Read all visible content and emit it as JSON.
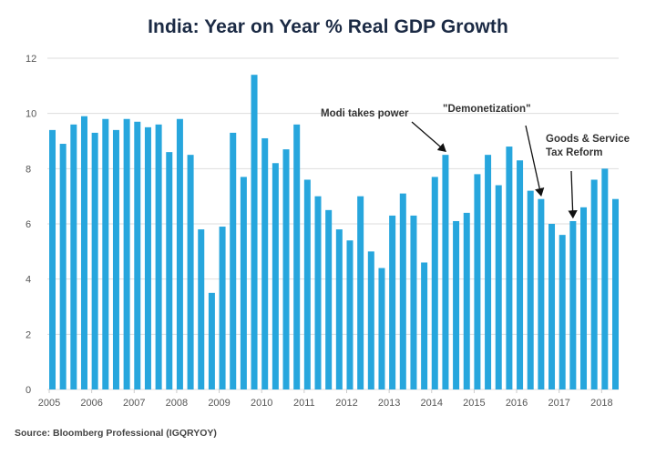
{
  "chart_data": {
    "type": "bar",
    "title": "India: Year on Year % Real GDP Growth",
    "xlabel": "",
    "ylabel": "",
    "ylim": [
      0,
      12
    ],
    "yticks": [
      0,
      2,
      4,
      6,
      8,
      10,
      12
    ],
    "grid": true,
    "legend": "none",
    "bar_color": "#27a6dd",
    "frequency": "quarterly",
    "x_tick_labels": [
      "2005",
      "2006",
      "2007",
      "2008",
      "2009",
      "2010",
      "2011",
      "2012",
      "2013",
      "2014",
      "2015",
      "2016",
      "2017",
      "2018"
    ],
    "categories": [
      "2005 Q1",
      "2005 Q2",
      "2005 Q3",
      "2005 Q4",
      "2006 Q1",
      "2006 Q2",
      "2006 Q3",
      "2006 Q4",
      "2007 Q1",
      "2007 Q2",
      "2007 Q3",
      "2007 Q4",
      "2008 Q1",
      "2008 Q2",
      "2008 Q3",
      "2008 Q4",
      "2009 Q1",
      "2009 Q2",
      "2009 Q3",
      "2009 Q4",
      "2010 Q1",
      "2010 Q2",
      "2010 Q3",
      "2010 Q4",
      "2011 Q1",
      "2011 Q2",
      "2011 Q3",
      "2011 Q4",
      "2012 Q1",
      "2012 Q2",
      "2012 Q3",
      "2012 Q4",
      "2013 Q1",
      "2013 Q2",
      "2013 Q3",
      "2013 Q4",
      "2014 Q1",
      "2014 Q2",
      "2014 Q3",
      "2014 Q4",
      "2015 Q1",
      "2015 Q2",
      "2015 Q3",
      "2015 Q4",
      "2016 Q1",
      "2016 Q2",
      "2016 Q3",
      "2016 Q4",
      "2017 Q1",
      "2017 Q2",
      "2017 Q3",
      "2017 Q4",
      "2018 Q1",
      "2018 Q2"
    ],
    "values": [
      9.4,
      8.9,
      9.6,
      9.9,
      9.3,
      9.8,
      9.4,
      9.8,
      9.7,
      9.5,
      9.6,
      8.6,
      9.8,
      8.5,
      5.8,
      3.5,
      5.9,
      9.3,
      7.7,
      11.4,
      9.1,
      8.2,
      8.7,
      9.6,
      7.6,
      7.0,
      6.5,
      5.8,
      5.4,
      7.0,
      5.0,
      4.4,
      6.3,
      7.1,
      6.3,
      4.6,
      7.7,
      8.5,
      6.1,
      6.4,
      7.8,
      8.5,
      7.4,
      8.8,
      8.3,
      7.2,
      6.9,
      6.0,
      5.6,
      6.1,
      6.6,
      7.6,
      8.0,
      6.9
    ],
    "annotations": [
      {
        "text_lines": [
          "Modi takes power"
        ],
        "points_to": "2014 Q2"
      },
      {
        "text_lines": [
          "\"Demonetization\""
        ],
        "points_to": "2016 Q3"
      },
      {
        "text_lines": [
          "Goods & Service",
          "Tax Reform"
        ],
        "points_to": "2017 Q2"
      }
    ],
    "source": "Source: Bloomberg Professional (IGQRYOY)"
  }
}
